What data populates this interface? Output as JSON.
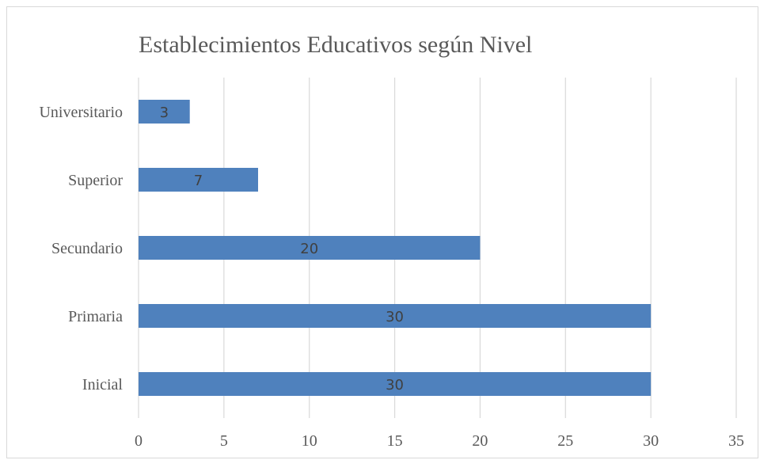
{
  "chart_data": {
    "type": "bar",
    "orientation": "horizontal",
    "title": "Establecimientos Educativos según Nivel",
    "xlabel": "",
    "ylabel": "",
    "categories": [
      "Universitario",
      "Superior",
      "Secundario",
      "Primaria",
      "Inicial"
    ],
    "values": [
      3,
      7,
      20,
      30,
      30
    ],
    "xlim": [
      0,
      35
    ],
    "x_ticks": [
      0,
      5,
      10,
      15,
      20,
      25,
      30,
      35
    ],
    "grid": "vertical",
    "legend": "none",
    "data_labels": true,
    "colors": {
      "bar": "#4f81bd",
      "grid": "#d9d9d9",
      "text": "#595959",
      "label": "#404040"
    }
  }
}
